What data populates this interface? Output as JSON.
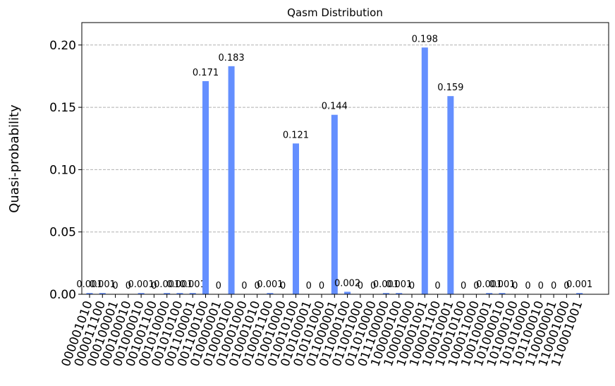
{
  "chart_data": {
    "type": "bar",
    "title": "Qasm Distribution",
    "y_label": "Quasi-probability",
    "categories": [
      "000001010",
      "000011100",
      "000100001",
      "000100010",
      "001000010",
      "001001100",
      "001010000",
      "001010100",
      "001100001",
      "001100100",
      "010000001",
      "010000100",
      "010001000",
      "010001010",
      "010001100",
      "010010000",
      "010010100",
      "010100001",
      "010101000",
      "011000001",
      "011000100",
      "011001000",
      "011010000",
      "011100000",
      "100000100",
      "100001000",
      "100001001",
      "100001100",
      "100010001",
      "100010100",
      "100011000",
      "100100001",
      "101000010",
      "101000100",
      "101010000",
      "101100010",
      "110000001",
      "110001000",
      "110001001"
    ],
    "values": [
      0.001,
      0.001,
      0,
      0,
      0.001,
      0,
      0.001,
      0.001,
      0.001,
      0.171,
      0,
      0.183,
      0,
      0,
      0.001,
      0,
      0.121,
      0,
      0,
      0.144,
      0.002,
      0,
      0,
      0.001,
      0.001,
      0,
      0.198,
      0,
      0.159,
      0,
      0,
      0.001,
      0.001,
      0,
      0,
      0,
      0,
      0,
      0.001
    ],
    "color": "#648fff",
    "ylim": [
      0,
      0.218
    ],
    "yticks": [
      {
        "value": 0,
        "label": "0.00"
      },
      {
        "value": 0.05,
        "label": "0.05"
      },
      {
        "value": 0.1,
        "label": "0.10"
      },
      {
        "value": 0.15,
        "label": "0.15"
      },
      {
        "value": 0.2,
        "label": "0.20"
      }
    ],
    "grid": true
  }
}
